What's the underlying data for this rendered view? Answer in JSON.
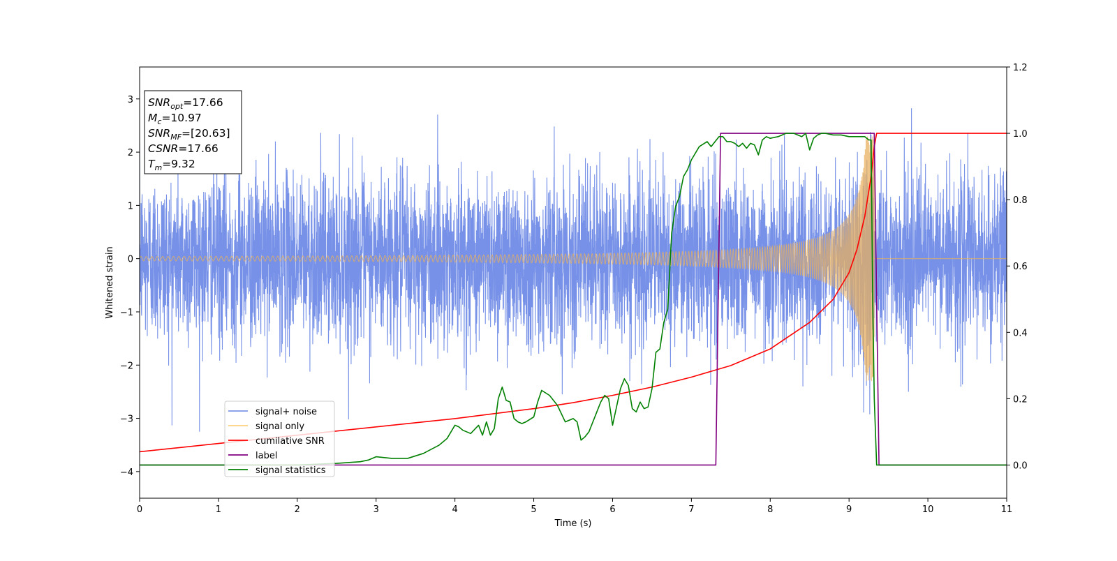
{
  "chart_data": {
    "type": "line",
    "xlabel": "Time (s)",
    "ylabel": "Whitened strain",
    "xlim": [
      0,
      11
    ],
    "ylim": [
      -4.5,
      3.6
    ],
    "y2lim": [
      -0.1,
      1.2
    ],
    "x_ticks": [
      "0",
      "1",
      "2",
      "3",
      "4",
      "5",
      "6",
      "7",
      "8",
      "9",
      "10",
      "11"
    ],
    "y_ticks": [
      "3",
      "2",
      "1",
      "0",
      "−1",
      "−2",
      "−3",
      "−4"
    ],
    "y_tick_values": [
      3,
      2,
      1,
      0,
      -1,
      -2,
      -3,
      -4
    ],
    "y2_ticks": [
      "1.2",
      "1.0",
      "0.8",
      "0.6",
      "0.4",
      "0.2",
      "0.0"
    ],
    "y2_tick_values": [
      1.2,
      1.0,
      0.8,
      0.6,
      0.4,
      0.2,
      0.0
    ],
    "info_box": {
      "lines": [
        {
          "sym": "SNR",
          "sub": "opt",
          "val": "=17.66"
        },
        {
          "sym": "M",
          "sub": "c",
          "val": "=10.97"
        },
        {
          "sym": "SNR",
          "sub": "MF",
          "val": "=[20.63]"
        },
        {
          "sym": "CSNR",
          "sub": "",
          "val": "=17.66"
        },
        {
          "sym": "T",
          "sub": "m",
          "val": "=9.32"
        }
      ]
    },
    "legend": {
      "location": "lower-left",
      "entries": [
        {
          "label": "signal+ noise",
          "color": "#7b96e8"
        },
        {
          "label": "signal only",
          "color": "#ffd080"
        },
        {
          "label": "cumilative SNR",
          "color": "#ff0000"
        },
        {
          "label": "label",
          "color": "#800080"
        },
        {
          "label": "signal statistics",
          "color": "#008000"
        }
      ]
    },
    "series": [
      {
        "name": "signal+ noise",
        "axis": "left",
        "color": "#6f8be6",
        "noise_sigma": 0.78,
        "noise_clip": [
          -4.2,
          3.25
        ],
        "merger_time": 9.32
      },
      {
        "name": "signal only",
        "axis": "left",
        "color": "#e8b060",
        "amplitude_at_t0": 0.04,
        "peak_amplitude": 2.3,
        "merger_time": 9.32
      },
      {
        "name": "cumilative SNR",
        "axis": "right",
        "color": "#ff0000",
        "x": [
          0,
          1,
          2,
          3,
          4,
          5,
          5.5,
          6,
          6.5,
          7,
          7.5,
          8,
          8.5,
          8.8,
          9.0,
          9.1,
          9.2,
          9.28,
          9.32,
          9.35,
          11
        ],
        "y": [
          0.04,
          0.065,
          0.09,
          0.115,
          0.14,
          0.17,
          0.188,
          0.21,
          0.235,
          0.265,
          0.3,
          0.35,
          0.43,
          0.5,
          0.58,
          0.65,
          0.75,
          0.87,
          0.96,
          1.0,
          1.0
        ]
      },
      {
        "name": "label",
        "axis": "right",
        "color": "#800080",
        "x": [
          0,
          7.31,
          7.37,
          9.32,
          9.38,
          11
        ],
        "y": [
          0,
          0,
          1,
          1,
          0,
          0
        ]
      },
      {
        "name": "signal statistics",
        "axis": "right",
        "color": "#008000",
        "x": [
          0,
          2.0,
          2.5,
          2.8,
          2.9,
          3.0,
          3.2,
          3.4,
          3.6,
          3.8,
          3.9,
          4.0,
          4.05,
          4.1,
          4.2,
          4.3,
          4.35,
          4.4,
          4.45,
          4.5,
          4.55,
          4.6,
          4.65,
          4.7,
          4.75,
          4.8,
          4.85,
          4.9,
          5.0,
          5.05,
          5.1,
          5.2,
          5.3,
          5.4,
          5.5,
          5.55,
          5.6,
          5.65,
          5.7,
          5.8,
          5.85,
          5.9,
          5.95,
          6.0,
          6.1,
          6.15,
          6.2,
          6.25,
          6.3,
          6.35,
          6.4,
          6.45,
          6.5,
          6.55,
          6.6,
          6.65,
          6.7,
          6.75,
          6.8,
          6.85,
          6.9,
          6.95,
          7.0,
          7.1,
          7.2,
          7.25,
          7.3,
          7.35,
          7.4,
          7.45,
          7.5,
          7.55,
          7.6,
          7.65,
          7.7,
          7.75,
          7.8,
          7.85,
          7.9,
          7.95,
          8.0,
          8.1,
          8.2,
          8.3,
          8.4,
          8.45,
          8.5,
          8.55,
          8.6,
          8.65,
          8.7,
          8.8,
          8.9,
          9.0,
          9.1,
          9.2,
          9.25,
          9.28,
          9.3,
          9.32,
          9.35,
          11
        ],
        "y": [
          0,
          0,
          0.005,
          0.01,
          0.015,
          0.025,
          0.02,
          0.02,
          0.035,
          0.06,
          0.08,
          0.12,
          0.115,
          0.105,
          0.095,
          0.12,
          0.09,
          0.13,
          0.09,
          0.11,
          0.2,
          0.235,
          0.195,
          0.19,
          0.14,
          0.13,
          0.125,
          0.13,
          0.145,
          0.19,
          0.225,
          0.21,
          0.18,
          0.13,
          0.14,
          0.13,
          0.075,
          0.085,
          0.1,
          0.16,
          0.19,
          0.21,
          0.2,
          0.12,
          0.23,
          0.26,
          0.24,
          0.17,
          0.16,
          0.19,
          0.17,
          0.175,
          0.23,
          0.34,
          0.35,
          0.43,
          0.47,
          0.7,
          0.78,
          0.81,
          0.87,
          0.89,
          0.92,
          0.96,
          0.975,
          0.96,
          0.975,
          0.99,
          0.99,
          0.975,
          0.975,
          0.97,
          0.96,
          0.97,
          0.955,
          0.97,
          0.965,
          0.935,
          0.98,
          0.99,
          0.985,
          0.99,
          1.0,
          1.0,
          0.99,
          1.0,
          0.95,
          0.985,
          0.995,
          1.0,
          1.0,
          0.995,
          0.995,
          0.99,
          0.99,
          0.99,
          0.98,
          0.98,
          0.5,
          0.2,
          0,
          0
        ]
      }
    ]
  }
}
